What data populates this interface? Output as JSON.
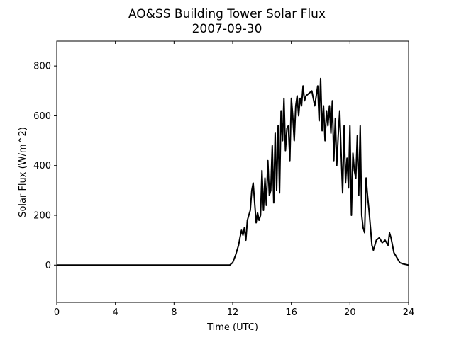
{
  "chart_data": {
    "type": "line",
    "title": "AO&SS Building Tower Solar Flux",
    "subtitle": "2007-09-30",
    "xlabel": "Time (UTC)",
    "ylabel": "Solar Flux (W/m^2)",
    "xlim": [
      0,
      24
    ],
    "ylim": [
      -150,
      900
    ],
    "xticks": [
      0,
      4,
      8,
      12,
      16,
      20,
      24
    ],
    "yticks": [
      0,
      200,
      400,
      600,
      800
    ],
    "grid": false,
    "series": [
      {
        "color": "#000000",
        "x": [
          0,
          11.8,
          12.0,
          12.2,
          12.4,
          12.5,
          12.6,
          12.7,
          12.8,
          12.9,
          13.0,
          13.1,
          13.2,
          13.3,
          13.4,
          13.5,
          13.6,
          13.7,
          13.8,
          13.9,
          14.0,
          14.1,
          14.2,
          14.3,
          14.4,
          14.5,
          14.6,
          14.7,
          14.8,
          14.9,
          15.0,
          15.1,
          15.2,
          15.3,
          15.4,
          15.5,
          15.6,
          15.7,
          15.8,
          15.9,
          16.0,
          16.1,
          16.2,
          16.3,
          16.4,
          16.5,
          16.6,
          16.7,
          16.8,
          16.9,
          17.0,
          17.2,
          17.4,
          17.6,
          17.8,
          17.9,
          18.0,
          18.1,
          18.2,
          18.3,
          18.4,
          18.5,
          18.6,
          18.7,
          18.8,
          18.9,
          19.0,
          19.1,
          19.2,
          19.3,
          19.4,
          19.5,
          19.6,
          19.7,
          19.8,
          19.9,
          20.0,
          20.1,
          20.2,
          20.3,
          20.4,
          20.5,
          20.6,
          20.7,
          20.8,
          20.9,
          21.0,
          21.1,
          21.2,
          21.3,
          21.4,
          21.5,
          21.6,
          21.8,
          22.0,
          22.2,
          22.4,
          22.6,
          22.7,
          22.8,
          22.9,
          23.0,
          23.2,
          23.4,
          23.6,
          24.0
        ],
        "y": [
          0,
          0,
          10,
          40,
          80,
          110,
          140,
          120,
          150,
          100,
          180,
          200,
          220,
          300,
          330,
          250,
          170,
          210,
          180,
          200,
          380,
          220,
          350,
          240,
          420,
          280,
          300,
          480,
          250,
          530,
          300,
          560,
          290,
          620,
          500,
          670,
          460,
          550,
          560,
          420,
          670,
          600,
          500,
          640,
          680,
          600,
          670,
          640,
          720,
          660,
          680,
          690,
          700,
          640,
          720,
          580,
          750,
          540,
          640,
          500,
          620,
          560,
          640,
          530,
          660,
          420,
          590,
          400,
          520,
          620,
          450,
          290,
          560,
          330,
          430,
          310,
          560,
          200,
          450,
          380,
          350,
          520,
          280,
          560,
          200,
          150,
          130,
          350,
          280,
          220,
          150,
          80,
          60,
          100,
          110,
          90,
          100,
          80,
          130,
          110,
          80,
          50,
          30,
          10,
          5,
          0
        ]
      }
    ]
  }
}
